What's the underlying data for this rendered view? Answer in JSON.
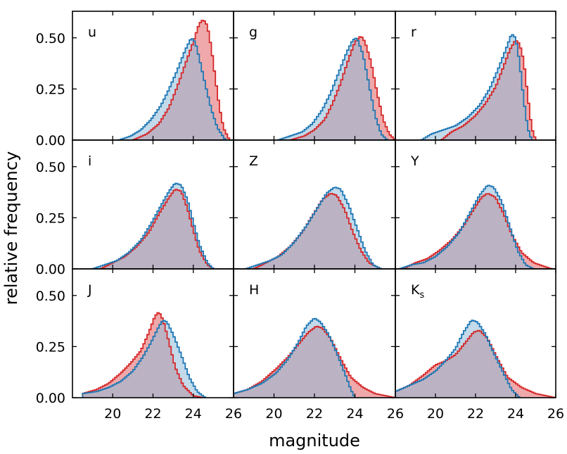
{
  "chart_data": {
    "type": "histogram",
    "xlabel": "magnitude",
    "ylabel": "relative frequency",
    "xlim": [
      18,
      26
    ],
    "ylim": [
      0,
      0.63
    ],
    "x_ticks": [
      20,
      22,
      24,
      26
    ],
    "x_tick_labels": [
      "20",
      "22",
      "24",
      "26"
    ],
    "y_ticks": [
      0.0,
      0.25,
      0.5
    ],
    "y_tick_labels": [
      "0.00",
      "0.25",
      "0.50"
    ],
    "layout": "3x3 grid, shared axes",
    "series_colors": {
      "red": {
        "line": "#d62728",
        "fill": "#ec9a9b"
      },
      "blue": {
        "line": "#1f77b4",
        "fill": "#8fbbd9"
      }
    },
    "panels": [
      {
        "band": "u",
        "sub": "",
        "red": [
          [
            21.0,
            0.0
          ],
          [
            21.7,
            0.03
          ],
          [
            22.3,
            0.08
          ],
          [
            22.8,
            0.16
          ],
          [
            23.2,
            0.26
          ],
          [
            23.6,
            0.37
          ],
          [
            24.0,
            0.48
          ],
          [
            24.3,
            0.57
          ],
          [
            24.5,
            0.59
          ],
          [
            24.7,
            0.56
          ],
          [
            24.9,
            0.45
          ],
          [
            25.1,
            0.3
          ],
          [
            25.3,
            0.16
          ],
          [
            25.5,
            0.06
          ],
          [
            25.8,
            0.0
          ]
        ],
        "blue": [
          [
            20.3,
            0.0
          ],
          [
            20.9,
            0.02
          ],
          [
            21.4,
            0.05
          ],
          [
            21.9,
            0.1
          ],
          [
            22.4,
            0.17
          ],
          [
            22.8,
            0.25
          ],
          [
            23.2,
            0.34
          ],
          [
            23.6,
            0.44
          ],
          [
            23.9,
            0.5
          ],
          [
            24.1,
            0.48
          ],
          [
            24.3,
            0.4
          ],
          [
            24.6,
            0.27
          ],
          [
            24.9,
            0.15
          ],
          [
            25.2,
            0.06
          ],
          [
            25.6,
            0.0
          ]
        ]
      },
      {
        "band": "g",
        "sub": "",
        "red": [
          [
            20.8,
            0.0
          ],
          [
            21.5,
            0.02
          ],
          [
            22.0,
            0.05
          ],
          [
            22.5,
            0.1
          ],
          [
            22.9,
            0.18
          ],
          [
            23.3,
            0.28
          ],
          [
            23.7,
            0.4
          ],
          [
            24.0,
            0.48
          ],
          [
            24.3,
            0.51
          ],
          [
            24.5,
            0.48
          ],
          [
            24.8,
            0.38
          ],
          [
            25.1,
            0.23
          ],
          [
            25.4,
            0.1
          ],
          [
            25.7,
            0.03
          ],
          [
            26.0,
            0.0
          ]
        ],
        "blue": [
          [
            20.2,
            0.0
          ],
          [
            20.8,
            0.02
          ],
          [
            21.4,
            0.04
          ],
          [
            21.9,
            0.08
          ],
          [
            22.4,
            0.15
          ],
          [
            22.8,
            0.23
          ],
          [
            23.2,
            0.33
          ],
          [
            23.6,
            0.43
          ],
          [
            23.9,
            0.49
          ],
          [
            24.1,
            0.5
          ],
          [
            24.4,
            0.42
          ],
          [
            24.7,
            0.27
          ],
          [
            25.0,
            0.12
          ],
          [
            25.3,
            0.03
          ],
          [
            25.6,
            0.0
          ]
        ]
      },
      {
        "band": "r",
        "sub": "",
        "red": [
          [
            20.3,
            0.0
          ],
          [
            20.8,
            0.04
          ],
          [
            21.4,
            0.07
          ],
          [
            22.0,
            0.12
          ],
          [
            22.5,
            0.18
          ],
          [
            23.0,
            0.26
          ],
          [
            23.4,
            0.36
          ],
          [
            23.7,
            0.44
          ],
          [
            24.0,
            0.49
          ],
          [
            24.2,
            0.47
          ],
          [
            24.4,
            0.39
          ],
          [
            24.6,
            0.22
          ],
          [
            24.8,
            0.06
          ],
          [
            25.0,
            0.0
          ]
        ],
        "blue": [
          [
            19.3,
            0.0
          ],
          [
            19.8,
            0.03
          ],
          [
            20.4,
            0.05
          ],
          [
            21.0,
            0.07
          ],
          [
            21.6,
            0.11
          ],
          [
            22.2,
            0.17
          ],
          [
            22.7,
            0.25
          ],
          [
            23.1,
            0.34
          ],
          [
            23.5,
            0.44
          ],
          [
            23.8,
            0.52
          ],
          [
            24.0,
            0.5
          ],
          [
            24.2,
            0.38
          ],
          [
            24.4,
            0.2
          ],
          [
            24.6,
            0.06
          ],
          [
            24.8,
            0.0
          ]
        ]
      },
      {
        "band": "i",
        "sub": "",
        "red": [
          [
            19.4,
            0.0
          ],
          [
            20.0,
            0.03
          ],
          [
            20.6,
            0.06
          ],
          [
            21.2,
            0.11
          ],
          [
            21.8,
            0.18
          ],
          [
            22.3,
            0.27
          ],
          [
            22.8,
            0.35
          ],
          [
            23.1,
            0.39
          ],
          [
            23.4,
            0.38
          ],
          [
            23.7,
            0.3
          ],
          [
            24.0,
            0.19
          ],
          [
            24.3,
            0.09
          ],
          [
            24.7,
            0.02
          ],
          [
            25.0,
            0.0
          ]
        ],
        "blue": [
          [
            19.0,
            0.0
          ],
          [
            19.6,
            0.02
          ],
          [
            20.2,
            0.04
          ],
          [
            20.8,
            0.08
          ],
          [
            21.4,
            0.14
          ],
          [
            21.9,
            0.22
          ],
          [
            22.4,
            0.31
          ],
          [
            22.8,
            0.38
          ],
          [
            23.1,
            0.42
          ],
          [
            23.4,
            0.41
          ],
          [
            23.7,
            0.34
          ],
          [
            24.0,
            0.23
          ],
          [
            24.3,
            0.12
          ],
          [
            24.7,
            0.03
          ],
          [
            25.0,
            0.0
          ]
        ]
      },
      {
        "band": "Z",
        "sub": "",
        "red": [
          [
            19.0,
            0.0
          ],
          [
            19.6,
            0.03
          ],
          [
            20.2,
            0.06
          ],
          [
            20.8,
            0.11
          ],
          [
            21.4,
            0.18
          ],
          [
            21.9,
            0.26
          ],
          [
            22.4,
            0.34
          ],
          [
            22.8,
            0.37
          ],
          [
            23.1,
            0.36
          ],
          [
            23.5,
            0.29
          ],
          [
            23.9,
            0.18
          ],
          [
            24.3,
            0.09
          ],
          [
            24.7,
            0.03
          ],
          [
            25.3,
            0.0
          ]
        ],
        "blue": [
          [
            18.6,
            0.0
          ],
          [
            19.2,
            0.02
          ],
          [
            19.8,
            0.04
          ],
          [
            20.4,
            0.07
          ],
          [
            21.0,
            0.13
          ],
          [
            21.6,
            0.21
          ],
          [
            22.1,
            0.29
          ],
          [
            22.6,
            0.37
          ],
          [
            23.0,
            0.4
          ],
          [
            23.3,
            0.39
          ],
          [
            23.7,
            0.31
          ],
          [
            24.1,
            0.2
          ],
          [
            24.5,
            0.09
          ],
          [
            24.9,
            0.02
          ],
          [
            25.3,
            0.0
          ]
        ]
      },
      {
        "band": "Y",
        "sub": "",
        "red": [
          [
            18.4,
            0.0
          ],
          [
            19.0,
            0.03
          ],
          [
            19.6,
            0.05
          ],
          [
            20.2,
            0.09
          ],
          [
            20.8,
            0.14
          ],
          [
            21.4,
            0.21
          ],
          [
            21.9,
            0.29
          ],
          [
            22.3,
            0.35
          ],
          [
            22.6,
            0.37
          ],
          [
            23.0,
            0.35
          ],
          [
            23.4,
            0.27
          ],
          [
            23.8,
            0.17
          ],
          [
            24.3,
            0.08
          ],
          [
            24.9,
            0.03
          ],
          [
            25.8,
            0.0
          ]
        ],
        "blue": [
          [
            18.2,
            0.0
          ],
          [
            18.8,
            0.02
          ],
          [
            19.4,
            0.03
          ],
          [
            20.0,
            0.06
          ],
          [
            20.6,
            0.11
          ],
          [
            21.2,
            0.18
          ],
          [
            21.7,
            0.27
          ],
          [
            22.2,
            0.36
          ],
          [
            22.6,
            0.41
          ],
          [
            22.9,
            0.4
          ],
          [
            23.3,
            0.33
          ],
          [
            23.7,
            0.21
          ],
          [
            24.1,
            0.09
          ],
          [
            24.5,
            0.02
          ],
          [
            24.9,
            0.0
          ]
        ]
      },
      {
        "band": "J",
        "sub": "",
        "red": [
          [
            18.5,
            0.02
          ],
          [
            19.2,
            0.04
          ],
          [
            19.8,
            0.07
          ],
          [
            20.4,
            0.12
          ],
          [
            20.9,
            0.17
          ],
          [
            21.4,
            0.23
          ],
          [
            21.8,
            0.32
          ],
          [
            22.1,
            0.4
          ],
          [
            22.3,
            0.42
          ],
          [
            22.5,
            0.38
          ],
          [
            22.8,
            0.27
          ],
          [
            23.1,
            0.15
          ],
          [
            23.5,
            0.06
          ],
          [
            24.0,
            0.01
          ],
          [
            24.5,
            0.0
          ]
        ],
        "blue": [
          [
            18.5,
            0.02
          ],
          [
            19.2,
            0.03
          ],
          [
            19.8,
            0.05
          ],
          [
            20.4,
            0.08
          ],
          [
            21.0,
            0.13
          ],
          [
            21.5,
            0.2
          ],
          [
            21.9,
            0.27
          ],
          [
            22.3,
            0.35
          ],
          [
            22.5,
            0.38
          ],
          [
            22.7,
            0.37
          ],
          [
            23.0,
            0.31
          ],
          [
            23.4,
            0.21
          ],
          [
            23.8,
            0.1
          ],
          [
            24.2,
            0.03
          ],
          [
            24.6,
            0.0
          ]
        ]
      },
      {
        "band": "H",
        "sub": "",
        "red": [
          [
            18.0,
            0.02
          ],
          [
            18.7,
            0.04
          ],
          [
            19.4,
            0.08
          ],
          [
            20.1,
            0.14
          ],
          [
            20.7,
            0.2
          ],
          [
            21.2,
            0.26
          ],
          [
            21.7,
            0.32
          ],
          [
            22.1,
            0.35
          ],
          [
            22.4,
            0.34
          ],
          [
            22.8,
            0.29
          ],
          [
            23.3,
            0.19
          ],
          [
            23.8,
            0.1
          ],
          [
            24.4,
            0.05
          ],
          [
            25.0,
            0.02
          ],
          [
            26.0,
            0.0
          ]
        ],
        "blue": [
          [
            18.0,
            0.02
          ],
          [
            18.7,
            0.04
          ],
          [
            19.4,
            0.07
          ],
          [
            20.1,
            0.12
          ],
          [
            20.7,
            0.19
          ],
          [
            21.2,
            0.27
          ],
          [
            21.6,
            0.35
          ],
          [
            22.0,
            0.39
          ],
          [
            22.3,
            0.37
          ],
          [
            22.7,
            0.31
          ],
          [
            23.1,
            0.22
          ],
          [
            23.5,
            0.12
          ],
          [
            23.8,
            0.04
          ],
          [
            24.0,
            0.0
          ]
        ]
      },
      {
        "band": "K",
        "sub": "s",
        "red": [
          [
            18.0,
            0.03
          ],
          [
            18.7,
            0.06
          ],
          [
            19.4,
            0.11
          ],
          [
            20.0,
            0.16
          ],
          [
            20.5,
            0.18
          ],
          [
            21.0,
            0.21
          ],
          [
            21.5,
            0.27
          ],
          [
            21.9,
            0.32
          ],
          [
            22.2,
            0.33
          ],
          [
            22.6,
            0.29
          ],
          [
            23.1,
            0.19
          ],
          [
            23.6,
            0.1
          ],
          [
            24.3,
            0.05
          ],
          [
            25.0,
            0.02
          ],
          [
            26.0,
            0.0
          ]
        ],
        "blue": [
          [
            18.0,
            0.03
          ],
          [
            18.7,
            0.06
          ],
          [
            19.4,
            0.09
          ],
          [
            20.0,
            0.13
          ],
          [
            20.5,
            0.18
          ],
          [
            21.0,
            0.24
          ],
          [
            21.4,
            0.32
          ],
          [
            21.8,
            0.38
          ],
          [
            22.1,
            0.37
          ],
          [
            22.5,
            0.31
          ],
          [
            22.9,
            0.22
          ],
          [
            23.4,
            0.12
          ],
          [
            23.8,
            0.04
          ],
          [
            24.2,
            0.0
          ]
        ]
      }
    ]
  }
}
